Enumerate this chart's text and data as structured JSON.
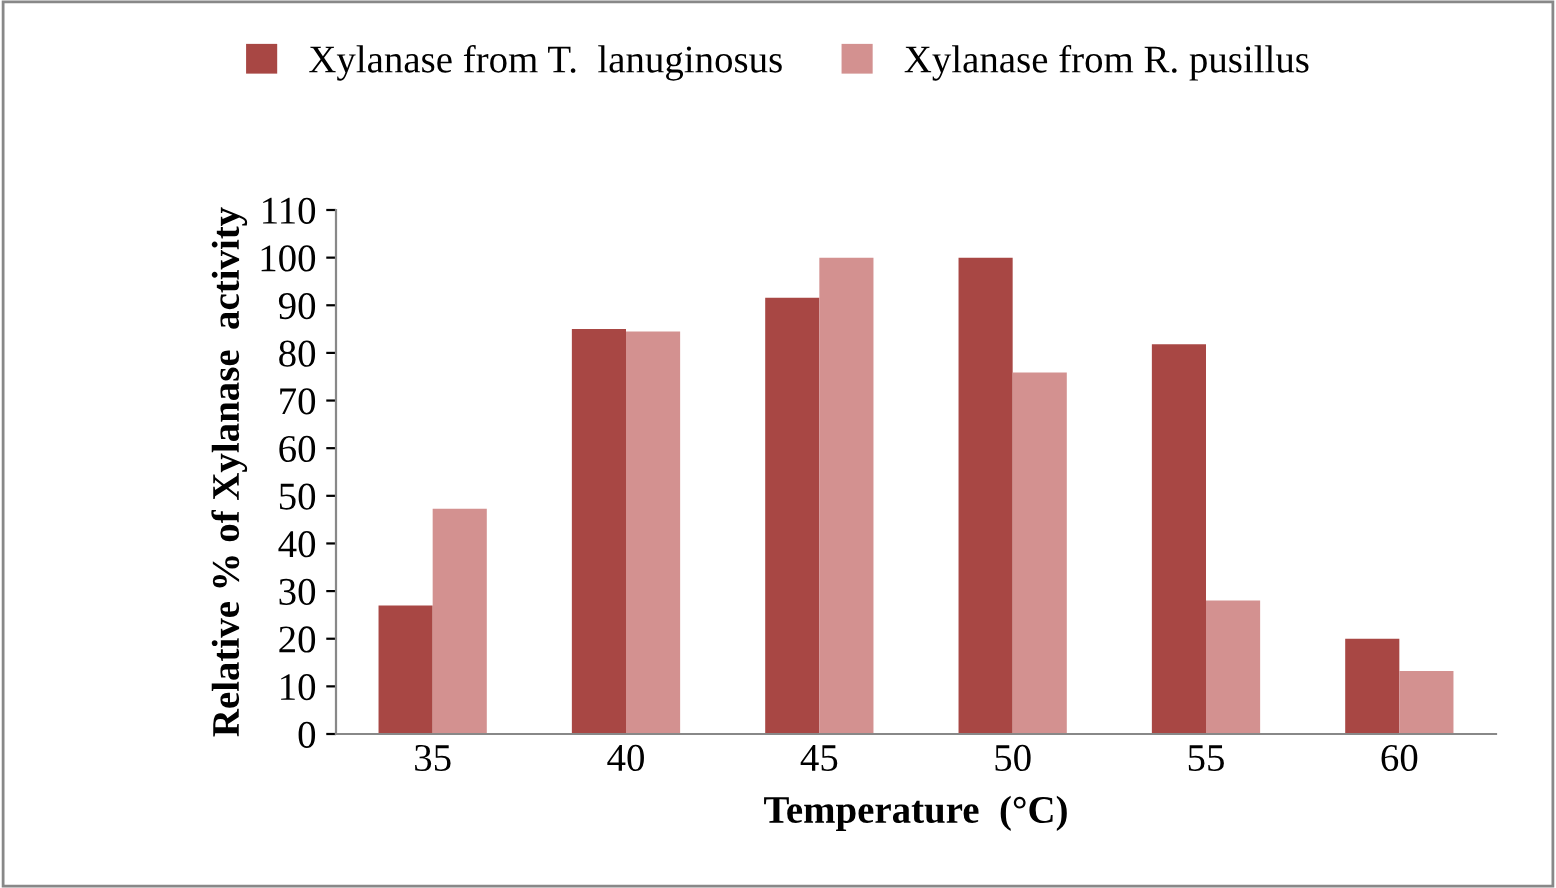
{
  "chart_data": {
    "type": "bar",
    "xlabel": "Temperature  (°C)",
    "ylabel": "Relative % of Xylanase  activity",
    "categories": [
      "35",
      "40",
      "45",
      "50",
      "55",
      "60"
    ],
    "series": [
      {
        "name": "Xylanase from T.  lanuginosus",
        "color": "#a84744",
        "values": [
          27,
          85,
          91.6,
          100,
          81.8,
          20
        ]
      },
      {
        "name": "Xylanase from R. pusillus",
        "color": "#d39190",
        "values": [
          47.3,
          84.5,
          100,
          75.9,
          28,
          13.2
        ]
      }
    ],
    "ylim": [
      0,
      110
    ],
    "yticks": [
      0,
      10,
      20,
      30,
      40,
      50,
      60,
      70,
      80,
      90,
      100,
      110
    ],
    "grid": false,
    "legend": "top"
  }
}
